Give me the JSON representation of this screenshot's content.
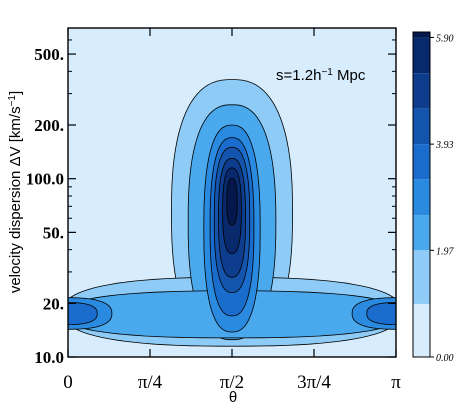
{
  "chart_data": {
    "type": "contour",
    "annotation": "s=1.2h⁻¹ Mpc",
    "xlabel": "θ",
    "ylabel": "velocity dispersion ΔV [km/s⁻¹]",
    "yscale": "log",
    "xlim": [
      0,
      3.14159
    ],
    "ylim": [
      10,
      700
    ],
    "x_ticks": [
      {
        "value": 0,
        "label": "0"
      },
      {
        "value": 0.7854,
        "label": "π/4"
      },
      {
        "value": 1.5708,
        "label": "π/2"
      },
      {
        "value": 2.3562,
        "label": "3π/4"
      },
      {
        "value": 3.14159,
        "label": "π"
      }
    ],
    "y_ticks": [
      {
        "value": 10,
        "label": "10.0"
      },
      {
        "value": 20,
        "label": "20."
      },
      {
        "value": 50,
        "label": "50."
      },
      {
        "value": 100,
        "label": "100.0"
      },
      {
        "value": 200,
        "label": "200."
      },
      {
        "value": 500,
        "label": "500."
      }
    ],
    "colorbar": {
      "min": 0.0,
      "max": 6.0,
      "tick_labels": [
        "0.00",
        "1.97",
        "3.93",
        "5.90"
      ],
      "tick_values": [
        0.0,
        1.97,
        3.93,
        5.9
      ],
      "levels": [
        0.0,
        0.98,
        1.97,
        2.62,
        3.28,
        3.93,
        4.59,
        5.24,
        5.9,
        6.0
      ],
      "colors": [
        "#d7ecfc",
        "#8ecbf6",
        "#4aa8ec",
        "#2a8ae0",
        "#1a6dcc",
        "#1354ad",
        "#0d3d8c",
        "#08296b",
        "#04184b",
        "#020e30"
      ]
    },
    "contours": [
      {
        "level": 0.98,
        "color": "#8ecbf6",
        "lobes": [
          {
            "cx": 1.5708,
            "hw": 0.58,
            "y0": 11.5,
            "y1": 360
          },
          {
            "cx": 1.5708,
            "hw": 1.62,
            "y0": 11.5,
            "y1": 28
          }
        ]
      },
      {
        "level": 1.97,
        "color": "#4aa8ec",
        "lobes": [
          {
            "cx": 1.5708,
            "hw": 0.42,
            "y0": 12.5,
            "y1": 260
          },
          {
            "cx": 1.5708,
            "hw": 1.62,
            "y0": 12.8,
            "y1": 23.5
          }
        ]
      },
      {
        "level": 2.62,
        "color": "#2a8ae0",
        "lobes": [
          {
            "cx": 1.5708,
            "hw": 0.27,
            "y0": 13.8,
            "y1": 200
          },
          {
            "cx": 0.0,
            "hw": 0.42,
            "y0": 14.3,
            "y1": 21.5
          },
          {
            "cx": 3.14159,
            "hw": 0.42,
            "y0": 14.3,
            "y1": 21.5
          }
        ]
      },
      {
        "level": 3.28,
        "color": "#1a6dcc",
        "lobes": [
          {
            "cx": 1.5708,
            "hw": 0.21,
            "y0": 17,
            "y1": 170
          },
          {
            "cx": 0.0,
            "hw": 0.28,
            "y0": 15.2,
            "y1": 20.2
          },
          {
            "cx": 3.14159,
            "hw": 0.28,
            "y0": 15.2,
            "y1": 20.2
          }
        ]
      },
      {
        "level": 3.93,
        "color": "#1354ad",
        "lobes": [
          {
            "cx": 1.5708,
            "hw": 0.17,
            "y0": 23,
            "y1": 150
          }
        ]
      },
      {
        "level": 4.59,
        "color": "#0d3d8c",
        "lobes": [
          {
            "cx": 1.5708,
            "hw": 0.13,
            "y0": 28,
            "y1": 130
          }
        ]
      },
      {
        "level": 5.24,
        "color": "#08296b",
        "lobes": [
          {
            "cx": 1.5708,
            "hw": 0.09,
            "y0": 38,
            "y1": 115
          }
        ]
      },
      {
        "level": 5.9,
        "color": "#04184b",
        "lobes": [
          {
            "cx": 1.5708,
            "hw": 0.05,
            "y0": 55,
            "y1": 100
          }
        ]
      }
    ]
  }
}
